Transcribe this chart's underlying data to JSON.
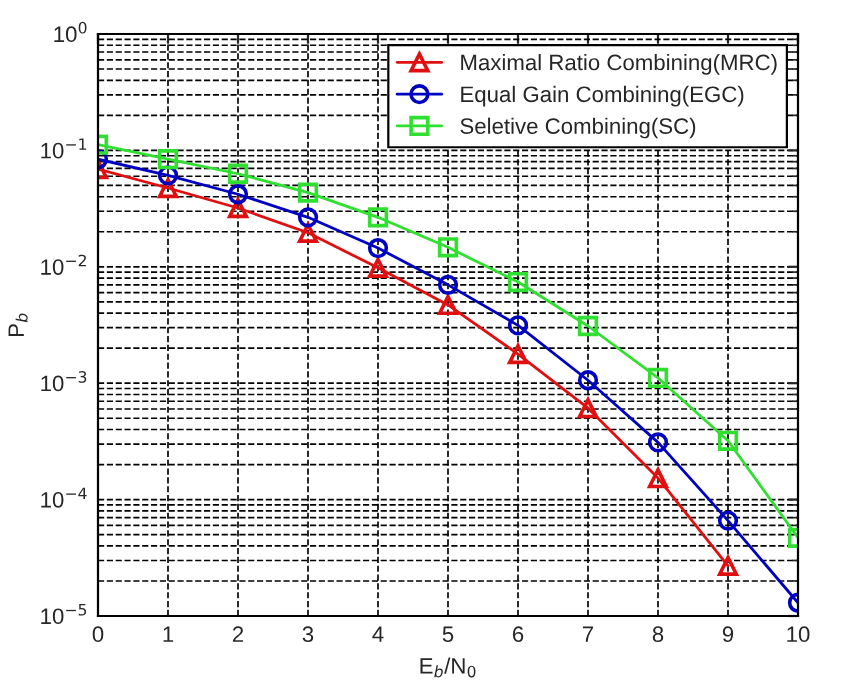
{
  "chart_data": {
    "type": "line",
    "xlabel": "E$_{b}$/N$_{0}$",
    "ylabel": "P$_{b}$",
    "x": [
      0,
      1,
      2,
      3,
      4,
      5,
      6,
      7,
      8,
      9,
      10
    ],
    "series": [
      {
        "name": "Maximal Ratio Combining(MRC)",
        "color": "#e01010",
        "marker": "triangle",
        "values": [
          0.069,
          0.0475,
          0.032,
          0.0196,
          0.0098,
          0.0047,
          0.00178,
          0.00061,
          0.000153,
          2.7e-05,
          null
        ]
      },
      {
        "name": "Equal Gain Combining(EGC)",
        "color": "#0000c0",
        "marker": "circle",
        "values": [
          0.084,
          0.061,
          0.042,
          0.0266,
          0.0145,
          0.007,
          0.00314,
          0.00106,
          0.00031,
          6.6e-05,
          1.3e-05
        ]
      },
      {
        "name": "Seletive Combining(SC)",
        "color": "#30e030",
        "marker": "square",
        "values": [
          0.112,
          0.084,
          0.063,
          0.0434,
          0.0266,
          0.0147,
          0.0074,
          0.0031,
          0.00111,
          0.00032,
          4.7e-05
        ]
      }
    ],
    "log": "y",
    "xlim": [
      0,
      10
    ],
    "xticks": [
      0,
      1,
      2,
      3,
      4,
      5,
      6,
      7,
      8,
      9,
      10
    ],
    "ylim": [
      1e-05,
      1
    ],
    "yticks": [
      {
        "value": 1e-05,
        "label": "10$^{−5}$"
      },
      {
        "value": 0.0001,
        "label": "10$^{−4}$"
      },
      {
        "value": 0.001,
        "label": "10$^{−3}$"
      },
      {
        "value": 0.01,
        "label": "10$^{−2}$"
      },
      {
        "value": 0.1,
        "label": "10$^{−1}$"
      },
      {
        "value": 1,
        "label": "10$^{0}$"
      }
    ],
    "grid": true,
    "legend": "top right",
    "line_style": "solid"
  }
}
